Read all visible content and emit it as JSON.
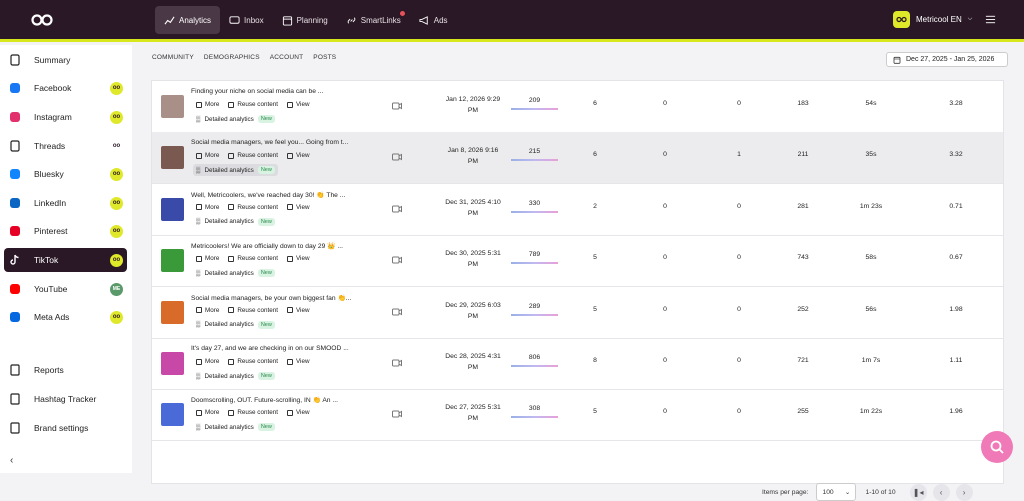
{
  "nav": {
    "items": [
      {
        "label": "Analytics",
        "icon": "chart-icon",
        "active": true
      },
      {
        "label": "Inbox",
        "icon": "chat-icon"
      },
      {
        "label": "Planning",
        "icon": "calendar-icon"
      },
      {
        "label": "SmartLinks",
        "icon": "link-icon",
        "dot": true
      },
      {
        "label": "Ads",
        "icon": "megaphone-icon"
      }
    ],
    "account": "Metricool EN"
  },
  "sidebar": {
    "items": [
      {
        "label": "Summary",
        "icon": "clipboard-icon"
      },
      {
        "label": "Facebook",
        "icon": "facebook-icon",
        "badge": "oo",
        "color": "#1877f2"
      },
      {
        "label": "Instagram",
        "icon": "instagram-icon",
        "badge": "oo",
        "color": "#e1306c"
      },
      {
        "label": "Threads",
        "icon": "threads-icon",
        "badge": "oo",
        "plain": true,
        "color": "#111"
      },
      {
        "label": "Bluesky",
        "icon": "bluesky-icon",
        "badge": "oo",
        "color": "#1185fe"
      },
      {
        "label": "LinkedIn",
        "icon": "linkedin-icon",
        "badge": "oo",
        "color": "#0a66c2"
      },
      {
        "label": "Pinterest",
        "icon": "pinterest-icon",
        "badge": "oo",
        "color": "#e60023"
      },
      {
        "label": "TikTok",
        "icon": "tiktok-icon",
        "badge": "oo",
        "active": true,
        "color": "#fff"
      },
      {
        "label": "YouTube",
        "icon": "youtube-icon",
        "badge": "ME",
        "me": true,
        "color": "#ff0000"
      },
      {
        "label": "Meta Ads",
        "icon": "meta-icon",
        "badge": "oo",
        "color": "#0668e1"
      }
    ],
    "bottom": [
      {
        "label": "Reports",
        "icon": "report-icon"
      },
      {
        "label": "Hashtag Tracker",
        "icon": "hashtag-icon"
      },
      {
        "label": "Brand settings",
        "icon": "settings-icon"
      }
    ]
  },
  "subtabs": [
    "COMMUNITY",
    "DEMOGRAPHICS",
    "ACCOUNT",
    "POSTS"
  ],
  "date_range": "Dec 27, 2025 - Jan 25, 2026",
  "actions": {
    "more": "More",
    "reuse": "Reuse content",
    "view": "View",
    "detailed": "Detailed analytics",
    "new": "New"
  },
  "posts": [
    {
      "caption": "Finding your niche on social media can be ...",
      "date1": "Jan 12, 2026 9:29",
      "date2": "PM",
      "views": "209",
      "c1": "6",
      "c2": "0",
      "c3": "0",
      "c4": "183",
      "c5": "54s",
      "c6": "3.28",
      "thumb": "#a89088"
    },
    {
      "caption": "Social media managers, we feel you... Going from t...",
      "date1": "Jan 8, 2026 9:16",
      "date2": "PM",
      "views": "215",
      "c1": "6",
      "c2": "0",
      "c3": "1",
      "c4": "211",
      "c5": "35s",
      "c6": "3.32",
      "thumb": "#7a5a50"
    },
    {
      "caption": "Well, Metricoolers, we've reached day 30! 👏 The ...",
      "date1": "Dec 31, 2025 4:10",
      "date2": "PM",
      "views": "330",
      "c1": "2",
      "c2": "0",
      "c3": "0",
      "c4": "281",
      "c5": "1m 23s",
      "c6": "0.71",
      "thumb": "#3a4aa8"
    },
    {
      "caption": "Metricoolers! We are officially down to day 29 👑 ...",
      "date1": "Dec 30, 2025 5:31",
      "date2": "PM",
      "views": "789",
      "c1": "5",
      "c2": "0",
      "c3": "0",
      "c4": "743",
      "c5": "58s",
      "c6": "0.67",
      "thumb": "#3a9a3a"
    },
    {
      "caption": "Social media managers, be your own biggest fan 👏...",
      "date1": "Dec 29, 2025 6:03",
      "date2": "PM",
      "views": "289",
      "c1": "5",
      "c2": "0",
      "c3": "0",
      "c4": "252",
      "c5": "56s",
      "c6": "1.98",
      "thumb": "#d86a2a"
    },
    {
      "caption": "It's day 27, and we are checking in on our SMOOD ...",
      "date1": "Dec 28, 2025 4:31",
      "date2": "PM",
      "views": "806",
      "c1": "8",
      "c2": "0",
      "c3": "0",
      "c4": "721",
      "c5": "1m 7s",
      "c6": "1.11",
      "thumb": "#c848a8"
    },
    {
      "caption": "Doomscrolling, OUT. Future-scrolling, IN 👏 An ...",
      "date1": "Dec 27, 2025 5:31",
      "date2": "PM",
      "views": "308",
      "c1": "5",
      "c2": "0",
      "c3": "0",
      "c4": "255",
      "c5": "1m 22s",
      "c6": "1.96",
      "thumb": "#4a6ad8"
    }
  ],
  "pager": {
    "label": "Items per page:",
    "value": "100",
    "range": "1-10 of 10"
  }
}
